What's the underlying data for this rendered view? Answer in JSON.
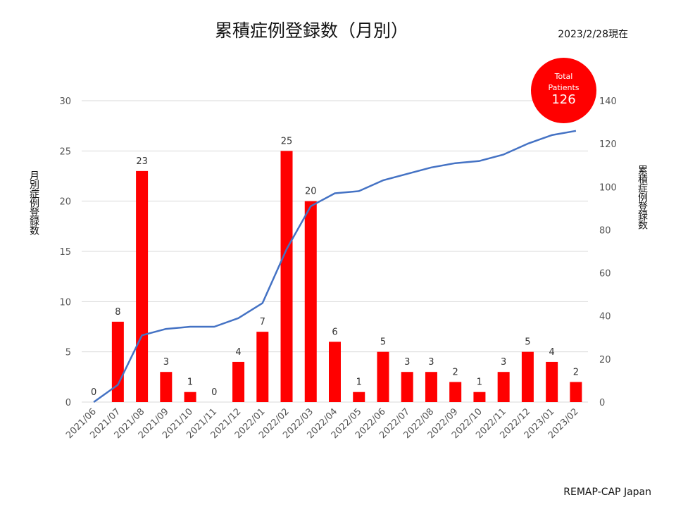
{
  "chart_data": {
    "type": "bar",
    "title": "累積症例登録数（月別）",
    "subtitle": "2023/2/28現在",
    "source": "REMAP-CAP Japan",
    "categories": [
      "2021/06",
      "2021/07",
      "2021/08",
      "2021/09",
      "2021/10",
      "2021/11",
      "2021/12",
      "2022/01",
      "2022/02",
      "2022/03",
      "2022/04",
      "2022/05",
      "2022/06",
      "2022/07",
      "2022/08",
      "2022/09",
      "2022/10",
      "2022/11",
      "2022/12",
      "2023/01",
      "2023/02"
    ],
    "series": [
      {
        "type": "bar",
        "axis": "left",
        "color": "#ff0000",
        "values": [
          0,
          8,
          23,
          3,
          1,
          0,
          4,
          7,
          25,
          20,
          6,
          1,
          5,
          3,
          3,
          2,
          1,
          3,
          5,
          4,
          2
        ]
      },
      {
        "type": "line",
        "axis": "right",
        "color": "#4472c4",
        "values": [
          0,
          8,
          31,
          34,
          35,
          35,
          39,
          46,
          71,
          91,
          97,
          98,
          103,
          106,
          109,
          111,
          112,
          115,
          120,
          124,
          126
        ]
      }
    ],
    "ylabel": "月別症例登録数",
    "y2label": "累積症例登録数",
    "ylim": [
      0,
      30
    ],
    "y2lim": [
      0,
      140
    ],
    "yticks": [
      "0",
      "5",
      "10",
      "15",
      "20",
      "25",
      "30"
    ],
    "y2ticks": [
      "0",
      "20",
      "40",
      "60",
      "80",
      "100",
      "120",
      "140"
    ],
    "grid": true,
    "badge": {
      "line1": "Total",
      "line2": "Patients",
      "value": "126",
      "color": "#ff0000"
    }
  }
}
